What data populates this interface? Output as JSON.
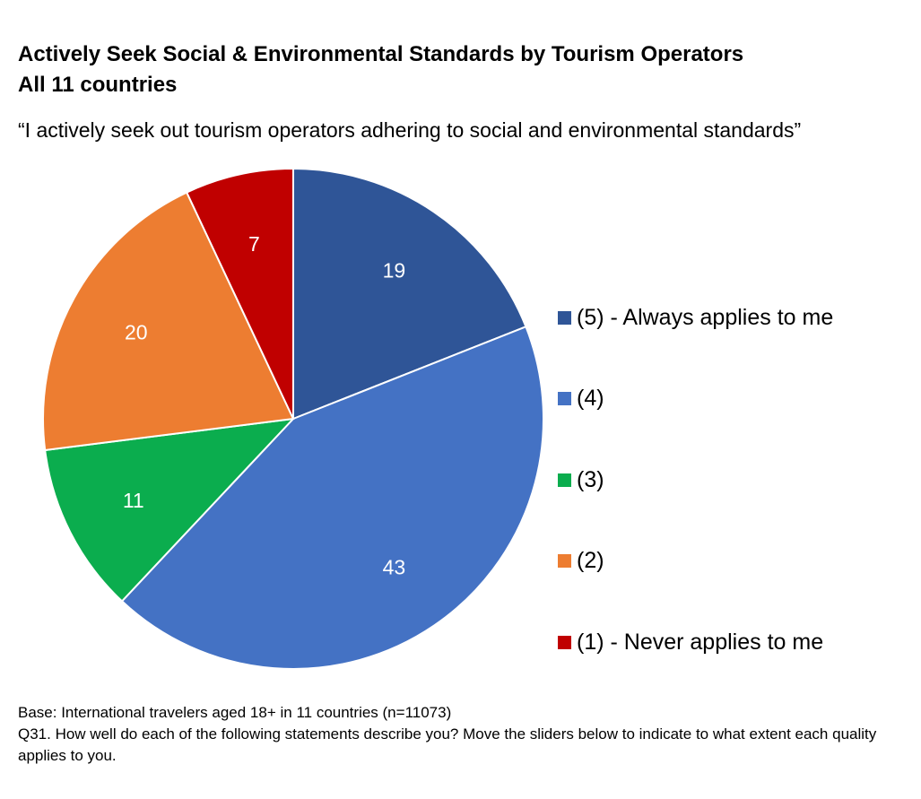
{
  "title_line1": "Actively Seek Social & Environmental Standards by Tourism Operators",
  "title_line2": "All 11 countries",
  "subtitle": "“I actively seek out tourism operators adhering to social and environmental standards”",
  "chart_data": {
    "type": "pie",
    "categories": [
      "(5) - Always applies to me",
      "(4)",
      "(3)",
      "(2)",
      "(1) - Never applies to me"
    ],
    "values": [
      19,
      43,
      11,
      20,
      7
    ],
    "colors": [
      "#2F5597",
      "#4472C4",
      "#0BAD4E",
      "#ED7D31",
      "#C00000"
    ],
    "data_labels": [
      "19",
      "43",
      "11",
      "20",
      "7"
    ],
    "start": "12 o'clock",
    "direction": "clockwise",
    "legend_placement": "right"
  },
  "footnote": {
    "base": "Base: International travelers aged 18+ in 11 countries (n=11073)",
    "question": "Q31. How well do each of the following statements describe you? Move the sliders below to indicate to what extent each quality applies to you."
  }
}
